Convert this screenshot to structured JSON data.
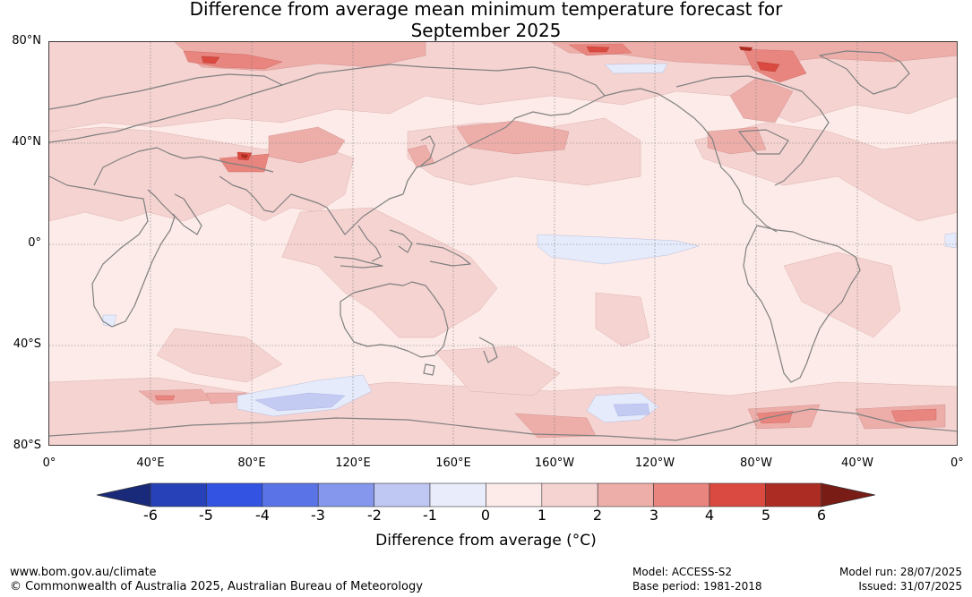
{
  "header": {
    "title_line1": "Difference from average mean minimum temperature forecast for",
    "title_line2": "September 2025"
  },
  "map": {
    "lat_labels": [
      "80°N",
      "40°N",
      "0°",
      "40°S",
      "80°S"
    ],
    "lon_labels": [
      "0°",
      "40°E",
      "80°E",
      "120°E",
      "160°E",
      "160°W",
      "120°W",
      "80°W",
      "40°W",
      "0°"
    ],
    "colors": {
      "ocean_base": "#fcebe8",
      "land_base": "#f6d2cf",
      "c_1_2": "#f5d3d1",
      "c_2_3": "#edaeaa",
      "c_3_4": "#e8857e",
      "c_4_5": "#db4a40",
      "c_5_6": "#ac2c23",
      "c_neg": "#e6ebfb",
      "c_neg2": "#c4cbf3",
      "coast": "#808080"
    }
  },
  "colorbar": {
    "tick_labels": [
      "-6",
      "-5",
      "-4",
      "-3",
      "-2",
      "-1",
      "0",
      "1",
      "2",
      "3",
      "4",
      "5",
      "6"
    ],
    "colors": [
      "#1a2a7a",
      "#2741b8",
      "#3353e3",
      "#5a73e6",
      "#8597ec",
      "#bfc7f3",
      "#e9ecfb",
      "#fcebe8",
      "#f5d3d1",
      "#edaeaa",
      "#e8857e",
      "#db4a40",
      "#ac2c23",
      "#7a1c16"
    ],
    "title": "Difference from average (°C)"
  },
  "footer": {
    "website": "www.bom.gov.au/climate",
    "copyright": "© Commonwealth of Australia 2025, Australian Bureau of Meteorology",
    "model": "Model: ACCESS-S2",
    "base_period": "Base period: 1981-2018",
    "model_run": "Model run: 28/07/2025",
    "issued": "Issued: 31/07/2025"
  }
}
